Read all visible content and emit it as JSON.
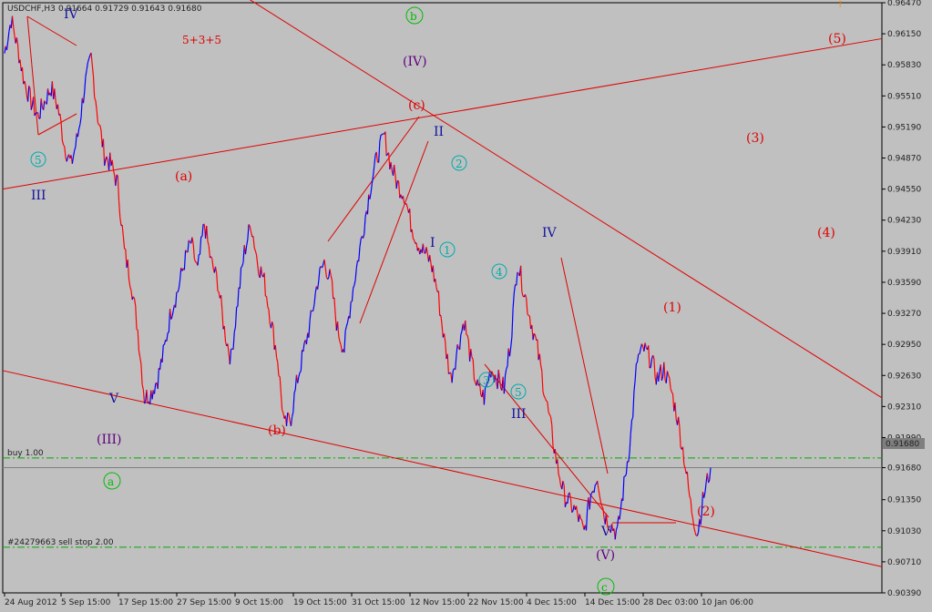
{
  "chart_data": {
    "type": "candlestick-line",
    "title": "USDCHF,H3",
    "ohlc_label": "0.91664 0.91729 0.91643 0.91680",
    "current_price": "0.91680",
    "ylim": [
      0.9039,
      0.9647
    ],
    "y_ticks": [
      "0.96470",
      "0.96150",
      "0.95830",
      "0.95510",
      "0.95190",
      "0.94870",
      "0.94550",
      "0.94230",
      "0.93910",
      "0.93590",
      "0.93270",
      "0.92950",
      "0.92630",
      "0.92310",
      "0.91990",
      "0.91680",
      "0.91350",
      "0.91030",
      "0.90710",
      "0.90390"
    ],
    "x_ticks": [
      "24 Aug 2012",
      "5 Sep 15:00",
      "17 Sep 15:00",
      "27 Sep 15:00",
      "9 Oct 15:00",
      "19 Oct 15:00",
      "31 Oct 15:00",
      "12 Nov 15:00",
      "22 Nov 15:00",
      "4 Dec 15:00",
      "14 Dec 15:00",
      "28 Dec 03:00",
      "10 Jan 06:00"
    ],
    "series_waypoints": [
      [
        0.9595,
        0.963,
        0.96,
        0.9565,
        0.9545,
        0.953,
        0.9545,
        0.956,
        0.954,
        0.95,
        0.948,
        0.951,
        0.956,
        0.959,
        0.953,
        0.949
      ],
      [
        0.948,
        0.946,
        0.939,
        0.936,
        0.931,
        0.924,
        0.9245,
        0.926,
        0.929,
        0.933,
        0.935,
        0.938,
        0.94,
        0.937,
        0.942,
        0.938
      ],
      [
        0.936,
        0.931,
        0.928,
        0.934,
        0.939,
        0.942,
        0.938,
        0.936,
        0.932,
        0.928,
        0.921,
        0.922,
        0.926,
        0.929,
        0.932,
        0.936
      ],
      [
        0.938,
        0.936,
        0.931,
        0.929,
        0.934,
        0.938,
        0.942,
        0.946,
        0.949,
        0.951,
        0.948,
        0.946,
        0.945,
        0.942,
        0.94,
        0.939
      ],
      [
        0.938,
        0.935,
        0.93,
        0.926,
        0.929,
        0.932,
        0.928,
        0.925,
        0.924,
        0.927,
        0.926,
        0.925,
        0.93,
        0.938,
        0.935,
        0.932
      ],
      [
        0.929,
        0.925,
        0.921,
        0.917,
        0.914,
        0.913,
        0.912,
        0.91,
        0.914,
        0.916,
        0.912,
        0.911,
        0.91,
        0.915,
        0.92,
        0.928
      ],
      [
        0.929,
        0.928,
        0.926,
        0.927,
        0.925,
        0.922,
        0.918,
        0.913,
        0.91,
        0.914,
        0.9168
      ]
    ],
    "trendlines": [
      {
        "from": [
          "24 Aug 2012",
          0.9455
        ],
        "to": [
          "10 Jan 06:00+",
          0.961
        ],
        "color": "#e00000"
      },
      {
        "from": [
          "24 Aug 2012",
          0.9268
        ],
        "to": [
          "10 Jan 06:00+",
          0.9066
        ],
        "color": "#e00000"
      },
      {
        "from": [
          "5 Sep 15:00-",
          0.9655
        ],
        "to": [
          "10 Jan 06:00+",
          0.924
        ],
        "color": "#e00000"
      }
    ],
    "horizontal_lines": [
      {
        "label": "buy 1.00",
        "value": 0.9178,
        "color": "#00aa00",
        "style": "dash-dot"
      },
      {
        "label": "#24279663 sell stop 2.00",
        "value": 0.9086,
        "color": "#00aa00",
        "style": "dash-dot"
      },
      {
        "label": "",
        "value": 0.9168,
        "color": "#7f7f7f",
        "style": "solid"
      }
    ],
    "series_colors": {
      "up": "#0000ff",
      "down": "#ff0000",
      "trend": "#e00000",
      "price_box": "#7f7f7f"
    }
  },
  "annotations": {
    "label_5_3_5": "5+3+5",
    "IV_top": "IV",
    "c5_left": "5",
    "III_left": "III",
    "a_paren": "(a)",
    "V_left": "V",
    "III_paren": "(III)",
    "a_circ": "a",
    "b_paren": "(b)",
    "b_circ": "b",
    "IV_paren": "(IV)",
    "c_paren": "(c)",
    "II": "II",
    "c2": "2",
    "I": "I",
    "c1": "1",
    "c4": "4",
    "c3": "3",
    "c5": "5",
    "III_mid": "III",
    "IV_mid": "IV",
    "V_bottom": "V",
    "V_paren": "(V)",
    "c_circ": "c",
    "w1": "(1)",
    "w2": "(2)",
    "w3": "(3)",
    "w4": "(4)",
    "w5": "(5)",
    "marker_top": "↑"
  }
}
